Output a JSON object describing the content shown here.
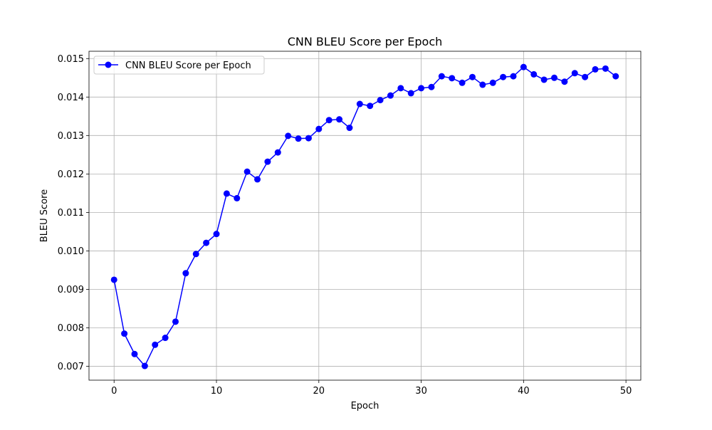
{
  "chart_data": {
    "type": "line",
    "title": "CNN BLEU Score per Epoch",
    "xlabel": "Epoch",
    "ylabel": "BLEU Score",
    "xlim": [
      -2.45,
      51.45
    ],
    "ylim": [
      0.00664,
      0.01519
    ],
    "xticks": [
      0,
      10,
      20,
      30,
      40,
      50
    ],
    "yticks": [
      0.007,
      0.008,
      0.009,
      0.01,
      0.011,
      0.012,
      0.013,
      0.014,
      0.015
    ],
    "xtick_labels": [
      "0",
      "10",
      "20",
      "30",
      "40",
      "50"
    ],
    "ytick_labels": [
      "0.007",
      "0.008",
      "0.009",
      "0.010",
      "0.011",
      "0.012",
      "0.013",
      "0.014",
      "0.015"
    ],
    "grid": true,
    "legend": {
      "placement": "top-left",
      "entries": [
        "CNN BLEU Score per Epoch"
      ]
    },
    "series": [
      {
        "name": "CNN BLEU Score per Epoch",
        "color": "#0000ff",
        "marker": "circle",
        "x": [
          0,
          1,
          2,
          3,
          4,
          5,
          6,
          7,
          8,
          9,
          10,
          11,
          12,
          13,
          14,
          15,
          16,
          17,
          18,
          19,
          20,
          21,
          22,
          23,
          24,
          25,
          26,
          27,
          28,
          29,
          30,
          31,
          32,
          33,
          34,
          35,
          36,
          37,
          38,
          39,
          40,
          41,
          42,
          43,
          44,
          45,
          46,
          47,
          48,
          49
        ],
        "values": [
          0.00925,
          0.00785,
          0.00732,
          0.00701,
          0.00756,
          0.00774,
          0.00816,
          0.00942,
          0.00992,
          0.01021,
          0.01044,
          0.01149,
          0.01137,
          0.01206,
          0.01186,
          0.01232,
          0.01256,
          0.01299,
          0.01292,
          0.01293,
          0.01317,
          0.0134,
          0.01342,
          0.0132,
          0.01382,
          0.01377,
          0.01392,
          0.01404,
          0.01423,
          0.0141,
          0.01423,
          0.01426,
          0.01454,
          0.01449,
          0.01437,
          0.01452,
          0.01432,
          0.01437,
          0.01452,
          0.01454,
          0.01478,
          0.01459,
          0.01445,
          0.0145,
          0.0144,
          0.01462,
          0.01452,
          0.01472,
          0.01474,
          0.01454
        ]
      }
    ]
  }
}
